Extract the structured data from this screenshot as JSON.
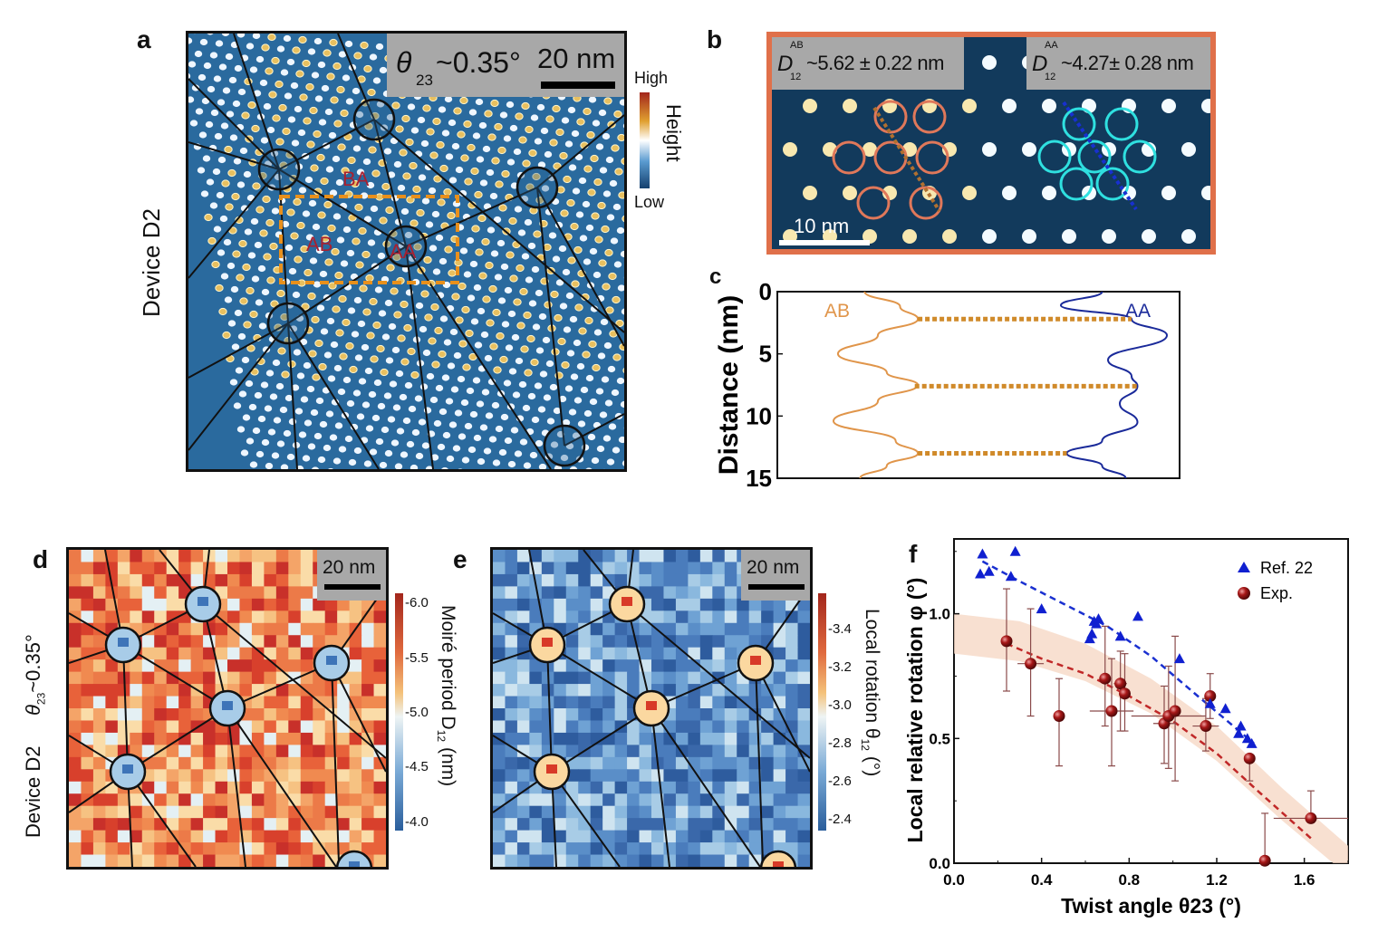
{
  "panels": {
    "a": {
      "label": "a",
      "side_label": "Device D2",
      "angle_label_prefix": "θ",
      "angle_label_sub": "23",
      "angle_label_value": "~0.35°",
      "scalebar": "20 nm",
      "region_labels": [
        "BA",
        "AB",
        "AA"
      ],
      "colorbar": {
        "top": "High",
        "bottom": "Low",
        "title": "Height",
        "colors": [
          "#a3261c",
          "#e0a030",
          "#ffffff",
          "#5a9bd0",
          "#15406e"
        ]
      }
    },
    "b": {
      "label": "b",
      "ab_label_main": "D",
      "ab_label_sup": "AB",
      "ab_label_sub": "12",
      "ab_label_value": "~5.62 ± 0.22 nm",
      "aa_label_main": "D",
      "aa_label_sup": "AA",
      "aa_label_sub": "12",
      "aa_label_value": "~4.27± 0.28 nm",
      "scalebar": "10 nm",
      "frame_color": "#e0704a",
      "ab_circle_color": "#e0785a",
      "aa_circle_color": "#2fe0e0"
    },
    "c": {
      "label": "c"
    },
    "d": {
      "label": "d",
      "side_label_1": "Device D2",
      "side_label_2_prefix": "θ",
      "side_label_2_sub": "23",
      "side_label_2_value": "~0.35°",
      "scalebar": "20 nm",
      "colorbar": {
        "title": "Moiré period D",
        "title_sub": "12",
        "title_unit": "(nm)",
        "ticks": [
          "6.0",
          "5.5",
          "5.0",
          "4.5",
          "4.0"
        ]
      }
    },
    "e": {
      "label": "e",
      "scalebar": "20 nm",
      "colorbar": {
        "title": "Local rotation θ",
        "title_sub": "12",
        "title_unit": "(°)",
        "ticks": [
          "3.4",
          "3.2",
          "3.0",
          "2.8",
          "2.6",
          "2.4"
        ]
      }
    },
    "f": {
      "label": "f"
    }
  },
  "chart_data": [
    {
      "panel": "c",
      "type": "line",
      "title": "",
      "xlabel": "",
      "ylabel": "Distance (nm)",
      "ylim": [
        0,
        15
      ],
      "y_inverted": true,
      "yticks": [
        "0",
        "5",
        "10",
        "15"
      ],
      "series": [
        {
          "name": "AB",
          "color": "#e0954a",
          "points_distance_nm": [
            0,
            1.2,
            2.2,
            3.5,
            5.0,
            6.5,
            7.5,
            8.8,
            10.4,
            12,
            13,
            14,
            15
          ],
          "relative_height": [
            0.35,
            0.75,
            0.95,
            0.5,
            0.05,
            0.6,
            0.95,
            0.5,
            0.0,
            0.7,
            0.95,
            0.6,
            0.3
          ]
        },
        {
          "name": "AA",
          "color": "#1a2a9a",
          "points_distance_nm": [
            0,
            1.1,
            2.2,
            3.5,
            5.5,
            6.8,
            7.6,
            9.0,
            10.5,
            12,
            13.0,
            14,
            15
          ],
          "relative_height": [
            0.45,
            0.1,
            0.7,
            1.0,
            0.5,
            0.7,
            0.75,
            0.6,
            0.75,
            0.45,
            0.15,
            0.45,
            0.65
          ]
        }
      ],
      "connectors_nm": [
        2.2,
        7.6,
        13.0
      ],
      "legend": [
        "AB",
        "AA"
      ]
    },
    {
      "panel": "f",
      "type": "scatter",
      "title": "",
      "xlabel": "Twist angle θ23 (°)",
      "ylabel": "Local relative rotation φ (°)",
      "xlim": [
        0.0,
        1.8
      ],
      "ylim": [
        0.0,
        1.3
      ],
      "xticks": [
        "0.0",
        "0.4",
        "0.8",
        "1.2",
        "1.6"
      ],
      "yticks": [
        "0.0",
        "0.5",
        "1.0"
      ],
      "legend_position": "top-right",
      "series": [
        {
          "name": "Ref. 22",
          "marker": "triangle",
          "color": "#1020d0",
          "x": [
            0.13,
            0.12,
            0.16,
            0.28,
            0.26,
            0.4,
            0.64,
            0.66,
            0.65,
            0.63,
            0.62,
            0.76,
            0.84,
            1.03,
            1.17,
            1.24,
            1.31,
            1.3,
            1.34,
            1.36
          ],
          "y": [
            1.24,
            1.16,
            1.17,
            1.25,
            1.15,
            1.02,
            0.97,
            0.98,
            0.96,
            0.92,
            0.9,
            0.91,
            0.99,
            0.82,
            0.64,
            0.62,
            0.55,
            0.52,
            0.5,
            0.48
          ]
        },
        {
          "name": "Exp.",
          "marker": "sphere",
          "color": "#9a1010",
          "x": [
            0.24,
            0.35,
            0.48,
            0.69,
            0.72,
            0.76,
            0.78,
            0.96,
            0.98,
            1.01,
            1.15,
            1.17,
            1.35,
            1.42,
            1.63
          ],
          "y": [
            0.89,
            0.8,
            0.59,
            0.74,
            0.61,
            0.72,
            0.68,
            0.56,
            0.59,
            0.61,
            0.55,
            0.67,
            0.42,
            0.01,
            0.18
          ],
          "yerr_low": [
            0.2,
            0.21,
            0.2,
            0.19,
            0.22,
            0.19,
            0.15,
            0.16,
            0.21,
            0.28,
            0.1,
            0.09,
            0.09,
            0.01,
            0.0
          ],
          "yerr_high": [
            0.21,
            0.22,
            0.15,
            0.21,
            0.21,
            0.13,
            0.16,
            0.15,
            0.2,
            0.3,
            0.11,
            0.09,
            0.0,
            0.19,
            0.11
          ],
          "xerr": [
            0.02,
            0.06,
            0.0,
            0.0,
            0.1,
            0.03,
            0.0,
            0.05,
            0.17,
            0.0,
            0.06,
            0.0,
            0.0,
            0.0,
            0.17
          ]
        }
      ],
      "fits": [
        {
          "name": "Ref. 22 fit",
          "style": "dashed",
          "color": "#1a30d0",
          "x": [
            0.13,
            0.3,
            0.5,
            0.7,
            0.9,
            1.1,
            1.37
          ],
          "y": [
            1.21,
            1.13,
            1.04,
            0.95,
            0.83,
            0.68,
            0.48
          ]
        },
        {
          "name": "Exp. fit",
          "style": "dashed",
          "color": "#c02828",
          "x": [
            0.24,
            0.4,
            0.6,
            0.8,
            1.0,
            1.2,
            1.4,
            1.63
          ],
          "y": [
            0.88,
            0.82,
            0.76,
            0.67,
            0.57,
            0.44,
            0.28,
            0.1
          ]
        },
        {
          "name": "band",
          "style": "band",
          "color": "#f6d8c6",
          "x": [
            0.0,
            0.3,
            0.6,
            0.9,
            1.2,
            1.5,
            1.8
          ],
          "y_low": [
            0.84,
            0.81,
            0.73,
            0.6,
            0.41,
            0.17,
            -0.05
          ],
          "y_high": [
            1.0,
            0.97,
            0.88,
            0.74,
            0.55,
            0.3,
            0.07
          ]
        }
      ]
    }
  ]
}
